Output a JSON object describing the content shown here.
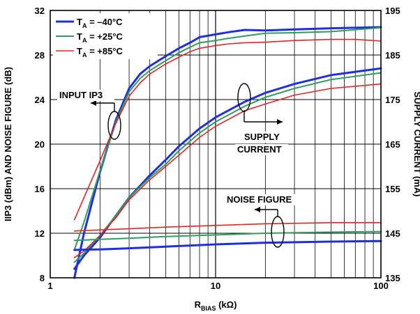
{
  "chart_data": {
    "type": "line",
    "xlabel": {
      "main": "R",
      "sub": "BIAS",
      "unit": " (kΩ)"
    },
    "ylabel_left": "IIP3 (dBm) AND NOISE FIGURE (dB)",
    "ylabel_right": "SUPPLY CURRENT (mA)",
    "x_scale": "log",
    "xlim": [
      1,
      100
    ],
    "ylim_left": [
      8,
      32
    ],
    "ylim_right": [
      135,
      195
    ],
    "x_ticks": [
      1,
      10,
      100
    ],
    "x_tick_labels": [
      "1",
      "10",
      "100"
    ],
    "y_ticks_left": [
      8,
      12,
      16,
      20,
      24,
      28,
      32
    ],
    "y_tick_labels_left": [
      "8",
      "12",
      "16",
      "20",
      "24",
      "28",
      "32"
    ],
    "y_ticks_right": [
      135,
      145,
      155,
      165,
      175,
      185,
      195
    ],
    "y_tick_labels_right": [
      "135",
      "145",
      "155",
      "165",
      "175",
      "185",
      "195"
    ],
    "grid": true,
    "legend": {
      "placement": "top-left",
      "entries": [
        {
          "main": "T",
          "sub": "A",
          "rest": " = –40°C",
          "color": "#1f2fe0",
          "width": 3
        },
        {
          "main": "T",
          "sub": "A",
          "rest": " = +25°C",
          "color": "#2e9e5e",
          "width": 2
        },
        {
          "main": "T",
          "sub": "A",
          "rest": " = +85°C",
          "color": "#e8231f",
          "width": 1.6
        }
      ]
    },
    "annotations": {
      "input_ip3": "INPUT IP3",
      "supply_line1": "SUPPLY",
      "supply_line2": "CURRENT",
      "noise_figure": "NOISE FIGURE"
    },
    "series": [
      {
        "group": "input_ip3",
        "axis": "left",
        "temp": "-40",
        "color": "#1f2fe0",
        "width": 3,
        "x": [
          1.4,
          1.6,
          2,
          2.5,
          3,
          3.5,
          4,
          5,
          6,
          7,
          8,
          10,
          12,
          15,
          20,
          30,
          50,
          100
        ],
        "y": [
          8,
          12,
          17.5,
          22.2,
          25,
          26.3,
          27,
          27.9,
          28.6,
          29.1,
          29.6,
          29.85,
          30.05,
          30.25,
          30.2,
          30.3,
          30.4,
          30.5
        ]
      },
      {
        "group": "input_ip3",
        "axis": "left",
        "temp": "25",
        "color": "#2e9e5e",
        "width": 2,
        "x": [
          1.4,
          1.6,
          2,
          2.5,
          3,
          3.5,
          4,
          5,
          6,
          7,
          8,
          10,
          12,
          15,
          20,
          30,
          50,
          100
        ],
        "y": [
          10.5,
          13,
          17.6,
          22,
          24.7,
          25.9,
          26.6,
          27.5,
          28.2,
          28.7,
          29.1,
          29.3,
          29.5,
          29.7,
          29.95,
          30,
          30.1,
          30.45
        ]
      },
      {
        "group": "input_ip3",
        "axis": "left",
        "temp": "85",
        "color": "#e8231f",
        "width": 1.6,
        "x": [
          1.4,
          1.6,
          2,
          2.5,
          3,
          3.5,
          4,
          5,
          6,
          7,
          8,
          10,
          12,
          15,
          20,
          30,
          50,
          70,
          100
        ],
        "y": [
          13.2,
          15.2,
          18.5,
          21.9,
          24.3,
          25.5,
          26.3,
          27.2,
          27.8,
          28.3,
          28.6,
          28.85,
          29,
          29.1,
          29.15,
          29.3,
          29.4,
          29.4,
          29.25
        ]
      },
      {
        "group": "supply_current",
        "axis": "right",
        "temp": "-40",
        "color": "#1f2fe0",
        "width": 3,
        "x": [
          1.4,
          1.6,
          2,
          2.5,
          3,
          4,
          5,
          6,
          8,
          10,
          15,
          20,
          30,
          50,
          100
        ],
        "y": [
          137,
          140,
          144,
          149,
          153,
          158,
          161.5,
          164.5,
          168.5,
          171,
          174.5,
          176.5,
          178.5,
          180.5,
          182
        ]
      },
      {
        "group": "supply_current",
        "axis": "right",
        "temp": "25",
        "color": "#2e9e5e",
        "width": 2,
        "x": [
          1.4,
          1.6,
          2,
          2.5,
          3,
          4,
          5,
          6,
          8,
          10,
          15,
          20,
          30,
          50,
          100
        ],
        "y": [
          138.5,
          140.5,
          144.5,
          149,
          153,
          157.5,
          160.5,
          163.5,
          167.5,
          170,
          173.5,
          175.5,
          177.5,
          179.5,
          181
        ]
      },
      {
        "group": "supply_current",
        "axis": "right",
        "temp": "85",
        "color": "#e8231f",
        "width": 1.6,
        "x": [
          1.4,
          1.6,
          2,
          2.5,
          3,
          4,
          5,
          6,
          8,
          10,
          15,
          20,
          30,
          50,
          100
        ],
        "y": [
          139.5,
          141,
          144.5,
          148.5,
          152.5,
          157,
          160,
          162.5,
          166.5,
          169,
          172.5,
          174,
          176,
          177.5,
          178.5
        ]
      },
      {
        "group": "noise_figure",
        "axis": "left",
        "temp": "-40",
        "color": "#1f2fe0",
        "width": 3,
        "x": [
          1.4,
          2,
          3,
          5,
          10,
          20,
          50,
          100
        ],
        "y": [
          10.5,
          10.55,
          10.65,
          10.8,
          11,
          11.15,
          11.25,
          11.3
        ]
      },
      {
        "group": "noise_figure",
        "axis": "left",
        "temp": "25",
        "color": "#2e9e5e",
        "width": 2,
        "x": [
          1.4,
          2,
          3,
          5,
          10,
          20,
          50,
          100
        ],
        "y": [
          11.35,
          11.45,
          11.55,
          11.7,
          11.85,
          12,
          12.1,
          12.15
        ]
      },
      {
        "group": "noise_figure",
        "axis": "left",
        "temp": "85",
        "color": "#e8231f",
        "width": 1.6,
        "x": [
          1.4,
          2,
          3,
          5,
          10,
          20,
          50,
          100
        ],
        "y": [
          12.2,
          12.3,
          12.4,
          12.55,
          12.7,
          12.85,
          12.95,
          12.95
        ]
      }
    ]
  }
}
